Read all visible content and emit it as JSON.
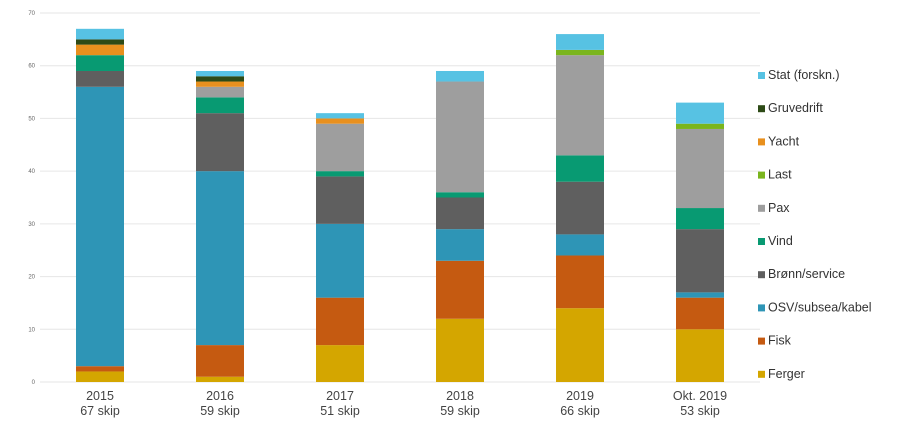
{
  "chart_data": {
    "type": "bar",
    "stacked": true,
    "categories": [
      {
        "year": "2015",
        "count": "67 skip"
      },
      {
        "year": "2016",
        "count": "59 skip"
      },
      {
        "year": "2017",
        "count": "51 skip"
      },
      {
        "year": "2018",
        "count": "59 skip"
      },
      {
        "year": "2019",
        "count": "66 skip"
      },
      {
        "year": "Okt. 2019",
        "count": "53 skip"
      }
    ],
    "ylim": [
      0,
      70
    ],
    "yticks": [
      0,
      10,
      20,
      30,
      40,
      50,
      60,
      70
    ],
    "grid": true,
    "legend_position": "right",
    "series": [
      {
        "name": "Ferger",
        "color": "#d4a600",
        "values": [
          2,
          1,
          7,
          12,
          14,
          10
        ]
      },
      {
        "name": "Fisk",
        "color": "#c55a11",
        "values": [
          1,
          6,
          9,
          11,
          10,
          6
        ]
      },
      {
        "name": "OSV/subsea/kabel",
        "color": "#2e95b6",
        "values": [
          53,
          33,
          14,
          6,
          4,
          1
        ]
      },
      {
        "name": "Brønn/service",
        "color": "#5f5f5f",
        "values": [
          3,
          11,
          9,
          6,
          10,
          12
        ]
      },
      {
        "name": "Vind",
        "color": "#089a72",
        "values": [
          3,
          3,
          1,
          1,
          5,
          4
        ]
      },
      {
        "name": "Pax",
        "color": "#9e9e9e",
        "values": [
          0,
          2,
          9,
          21,
          19,
          15
        ]
      },
      {
        "name": "Last",
        "color": "#7ab51d",
        "values": [
          0,
          0,
          0,
          0,
          1,
          1
        ]
      },
      {
        "name": "Yacht",
        "color": "#e8901e",
        "values": [
          2,
          1,
          1,
          0,
          0,
          0
        ]
      },
      {
        "name": "Gruvedrift",
        "color": "#2d4a16",
        "values": [
          1,
          1,
          0,
          0,
          0,
          0
        ]
      },
      {
        "name": "Stat (forskn.)",
        "color": "#57c2e3",
        "values": [
          2,
          1,
          1,
          2,
          3,
          4
        ]
      }
    ]
  }
}
